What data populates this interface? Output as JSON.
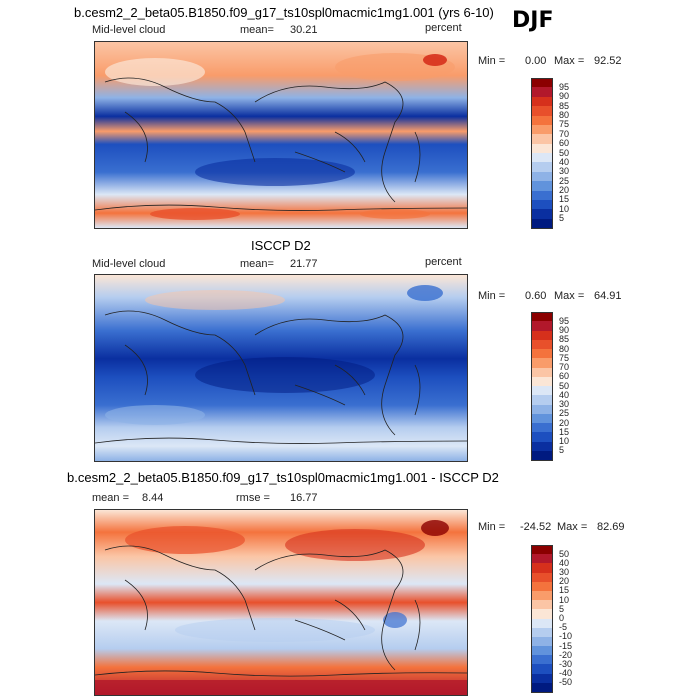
{
  "season": "DJF",
  "panels": [
    {
      "title": "b.cesm2_2_beta05.B1850.f09_g17_ts10spl0macmic1mg1.001 (yrs 6-10)",
      "field": "Mid-level cloud",
      "stat_label": "mean=",
      "stat_value": "30.21",
      "units": "percent",
      "min_label": "Min =",
      "min_value": "0.00",
      "max_label": "Max =",
      "max_value": "92.52",
      "colorbar_levels": [
        "95",
        "90",
        "85",
        "80",
        "75",
        "70",
        "60",
        "50",
        "40",
        "30",
        "25",
        "20",
        "15",
        "10",
        "5"
      ],
      "colorbar_colors": [
        "#8b0000",
        "#b2182b",
        "#d6301c",
        "#e8502b",
        "#f4733d",
        "#f99c6a",
        "#fbc5a5",
        "#fbe6d6",
        "#dce7f6",
        "#b5cdef",
        "#8eb2e6",
        "#6193dc",
        "#3a6fd0",
        "#1d4fbf",
        "#0a2fa0",
        "#001a80"
      ]
    },
    {
      "title": "ISCCP D2",
      "field": "Mid-level cloud",
      "stat_label": "mean=",
      "stat_value": "21.77",
      "units": "percent",
      "min_label": "Min =",
      "min_value": "0.60",
      "max_label": "Max =",
      "max_value": "64.91",
      "colorbar_levels": [
        "95",
        "90",
        "85",
        "80",
        "75",
        "70",
        "60",
        "50",
        "40",
        "30",
        "25",
        "20",
        "15",
        "10",
        "5"
      ],
      "colorbar_colors": [
        "#8b0000",
        "#b2182b",
        "#d6301c",
        "#e8502b",
        "#f4733d",
        "#f99c6a",
        "#fbc5a5",
        "#fbe6d6",
        "#dce7f6",
        "#b5cdef",
        "#8eb2e6",
        "#6193dc",
        "#3a6fd0",
        "#1d4fbf",
        "#0a2fa0",
        "#001a80"
      ]
    },
    {
      "title": "b.cesm2_2_beta05.B1850.f09_g17_ts10spl0macmic1mg1.001 - ISCCP D2",
      "field": "mean =",
      "stat_label": "rmse =",
      "stat_value": "16.77",
      "mean_value": "8.44",
      "min_label": "Min =",
      "min_value": "-24.52",
      "max_label": "Max =",
      "max_value": "82.69",
      "colorbar_levels": [
        "50",
        "40",
        "30",
        "20",
        "15",
        "10",
        "5",
        "0",
        "-5",
        "-10",
        "-15",
        "-20",
        "-30",
        "-40",
        "-50"
      ],
      "colorbar_colors": [
        "#8b0000",
        "#b2182b",
        "#d6301c",
        "#e8502b",
        "#f4733d",
        "#f99c6a",
        "#fbc5a5",
        "#fbe6d6",
        "#dce7f6",
        "#b5cdef",
        "#8eb2e6",
        "#6193dc",
        "#3a6fd0",
        "#1d4fbf",
        "#0a2fa0",
        "#001a80"
      ]
    }
  ]
}
